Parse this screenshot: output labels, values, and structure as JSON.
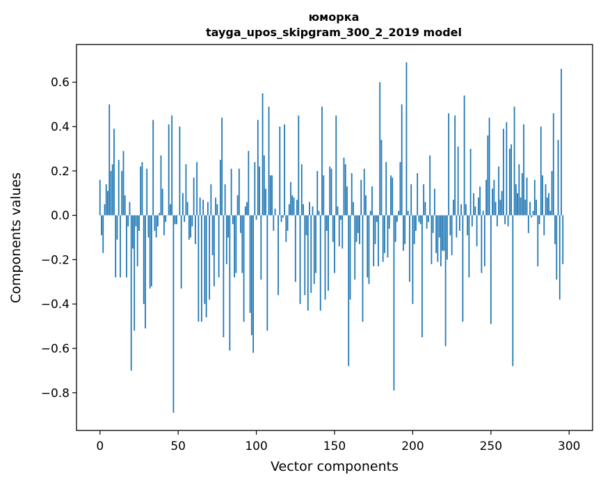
{
  "chart_data": {
    "type": "bar",
    "title": "юморка",
    "subtitle": "tayga_upos_skipgram_300_2_2019 model",
    "xlabel": "Vector components",
    "ylabel": "Components values",
    "xlim": [
      -15,
      315
    ],
    "ylim": [
      -0.97,
      0.77
    ],
    "xticks": [
      0,
      50,
      100,
      150,
      200,
      250,
      300
    ],
    "yticks": [
      -0.8,
      -0.6,
      -0.4,
      -0.2,
      0.0,
      0.2,
      0.4,
      0.6
    ],
    "ytick_labels": [
      "−0.8",
      "−0.6",
      "−0.4",
      "−0.2",
      "0.0",
      "0.2",
      "0.4",
      "0.6"
    ],
    "bar_color": "#1f77b4",
    "grid": false,
    "series": [
      {
        "values": [
          0.16,
          -0.09,
          -0.17,
          0.05,
          0.14,
          0.11,
          0.5,
          0.2,
          0.23,
          0.39,
          -0.28,
          -0.11,
          0.25,
          -0.28,
          0.2,
          0.29,
          0.09,
          -0.28,
          -0.05,
          0.06,
          -0.7,
          -0.15,
          -0.52,
          -0.05,
          -0.23,
          -0.07,
          0.22,
          0.24,
          -0.4,
          -0.51,
          0.21,
          -0.1,
          -0.33,
          -0.32,
          0.43,
          -0.07,
          -0.1,
          -0.05,
          0.01,
          0.27,
          0.12,
          -0.09,
          -0.03,
          0.0,
          0.41,
          0.05,
          0.45,
          -0.89,
          -0.04,
          -0.04,
          0.0,
          0.4,
          -0.33,
          0.1,
          -0.03,
          0.23,
          0.06,
          -0.11,
          -0.1,
          -0.05,
          0.17,
          -0.13,
          0.24,
          -0.48,
          0.08,
          -0.48,
          0.07,
          -0.4,
          -0.46,
          0.06,
          -0.38,
          0.14,
          -0.18,
          -0.32,
          0.08,
          0.05,
          -0.28,
          0.25,
          0.44,
          -0.55,
          0.14,
          -0.22,
          -0.1,
          -0.61,
          0.21,
          -0.04,
          -0.28,
          -0.26,
          0.09,
          0.21,
          -0.08,
          -0.26,
          -0.48,
          0.04,
          0.06,
          0.29,
          -0.44,
          -0.54,
          -0.62,
          0.24,
          -0.02,
          0.43,
          0.22,
          -0.29,
          0.55,
          0.27,
          0.12,
          -0.52,
          0.49,
          0.18,
          0.18,
          -0.07,
          0.03,
          0.0,
          -0.36,
          0.4,
          -0.03,
          -0.01,
          0.41,
          -0.12,
          -0.07,
          0.05,
          0.15,
          0.09,
          0.08,
          -0.3,
          0.07,
          0.45,
          -0.4,
          0.23,
          0.05,
          -0.36,
          -0.09,
          -0.43,
          0.06,
          -0.35,
          0.04,
          -0.31,
          -0.26,
          0.2,
          0.02,
          -0.43,
          0.49,
          0.18,
          -0.38,
          -0.07,
          -0.34,
          0.22,
          0.21,
          -0.12,
          -0.26,
          0.45,
          0.04,
          -0.14,
          -0.02,
          -0.15,
          0.26,
          0.23,
          0.13,
          -0.68,
          -0.38,
          0.19,
          0.06,
          -0.29,
          -0.12,
          -0.08,
          -0.13,
          0.16,
          -0.48,
          0.21,
          0.09,
          -0.28,
          -0.31,
          0.02,
          0.13,
          -0.23,
          -0.13,
          -0.03,
          -0.23,
          0.6,
          0.34,
          -0.21,
          -0.17,
          0.24,
          -0.19,
          -0.06,
          0.18,
          0.17,
          -0.79,
          -0.12,
          -0.03,
          0.02,
          0.24,
          0.5,
          -0.16,
          -0.13,
          0.69,
          0.02,
          -0.3,
          0.14,
          -0.4,
          -0.13,
          -0.07,
          0.19,
          -0.03,
          -0.04,
          -0.55,
          0.14,
          0.06,
          -0.06,
          -0.03,
          0.27,
          -0.22,
          -0.08,
          0.12,
          -0.17,
          -0.21,
          -0.1,
          -0.23,
          -0.16,
          -0.16,
          -0.59,
          -0.2,
          0.46,
          -0.09,
          -0.18,
          0.07,
          0.45,
          -0.1,
          0.31,
          -0.07,
          0.05,
          -0.48,
          0.54,
          0.05,
          -0.09,
          -0.28,
          0.3,
          -0.05,
          0.1,
          0.04,
          -0.14,
          0.08,
          0.13,
          -0.26,
          0.02,
          -0.23,
          0.16,
          0.36,
          0.44,
          -0.49,
          0.12,
          0.16,
          0.06,
          -0.05,
          0.22,
          0.07,
          0.11,
          0.39,
          -0.04,
          0.42,
          -0.05,
          0.3,
          0.32,
          -0.68,
          0.49,
          0.14,
          0.1,
          0.23,
          0.08,
          0.19,
          0.41,
          0.07,
          0.17,
          -0.08,
          0.06,
          -0.01,
          0.02,
          0.16,
          0.07,
          -0.23,
          -0.04,
          0.4,
          0.18,
          -0.09,
          0.14,
          0.08,
          0.1,
          0.02,
          0.2,
          0.46,
          -0.13,
          -0.29,
          0.34,
          -0.38,
          0.66,
          -0.22
        ]
      }
    ]
  }
}
